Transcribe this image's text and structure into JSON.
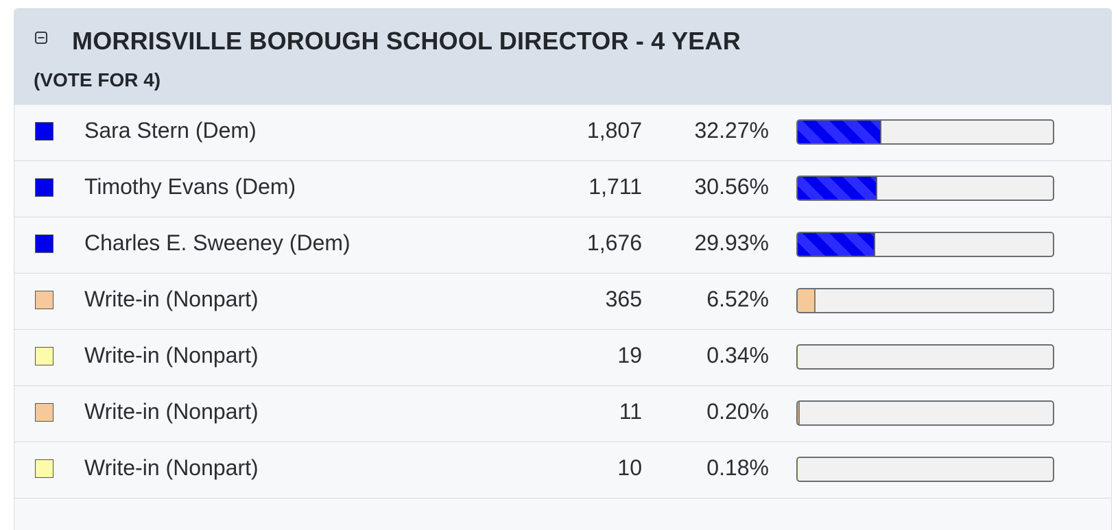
{
  "contest": {
    "title": "MORRISVILLE BOROUGH SCHOOL DIRECTOR - 4 YEAR",
    "subtitle": "(VOTE FOR 4)",
    "collapse_icon": "minus-square-icon"
  },
  "colors": {
    "dem": "#0000ee",
    "nonpart_tan": "#f5c999",
    "nonpart_yellow": "#fbfbaa",
    "header_bg": "#d8e1ea"
  },
  "candidates": [
    {
      "name": "Sara Stern (Dem)",
      "votes": "1,807",
      "percent": "32.27%",
      "share": 32.27,
      "swatch": "#0000ee",
      "bar_style": "striped"
    },
    {
      "name": "Timothy Evans (Dem)",
      "votes": "1,711",
      "percent": "30.56%",
      "share": 30.56,
      "swatch": "#0000ee",
      "bar_style": "striped"
    },
    {
      "name": "Charles E. Sweeney (Dem)",
      "votes": "1,676",
      "percent": "29.93%",
      "share": 29.93,
      "swatch": "#0000ee",
      "bar_style": "striped"
    },
    {
      "name": "Write-in (Nonpart)",
      "votes": "365",
      "percent": "6.52%",
      "share": 6.52,
      "swatch": "#f5c999",
      "bar_style": "tan"
    },
    {
      "name": "Write-in (Nonpart)",
      "votes": "19",
      "percent": "0.34%",
      "share": 0.34,
      "swatch": "#fbfbaa",
      "bar_style": "pale"
    },
    {
      "name": "Write-in (Nonpart)",
      "votes": "11",
      "percent": "0.20%",
      "share": 0.2,
      "swatch": "#f5c999",
      "bar_style": "tan"
    },
    {
      "name": "Write-in (Nonpart)",
      "votes": "10",
      "percent": "0.18%",
      "share": 0.18,
      "swatch": "#fbfbaa",
      "bar_style": "pale"
    }
  ]
}
